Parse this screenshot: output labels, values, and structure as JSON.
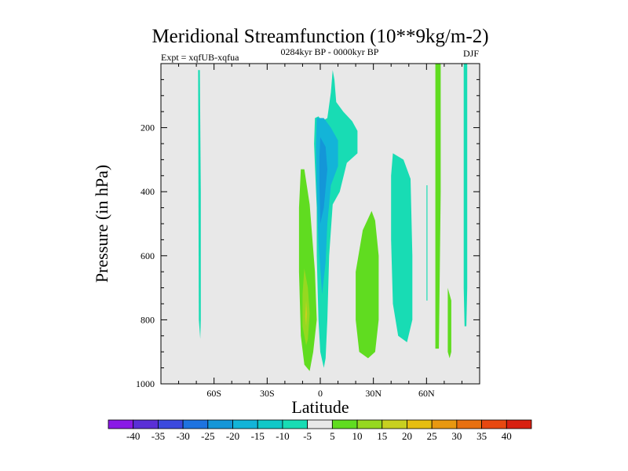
{
  "chart_data": {
    "type": "heatmap",
    "title": "Meridional Streamfunction (10**9kg/m-2)",
    "subtitle_left": "Expt = xqfUB-xqfua",
    "subtitle_center": "0284kyr BP - 0000kyr BP",
    "subtitle_right": "DJF",
    "xlabel": "Latitude",
    "ylabel": "Pressure (in hPa)",
    "xlim": [
      -90,
      90
    ],
    "ylim": [
      1000,
      0
    ],
    "x_ticks": [
      {
        "value": -60,
        "label": "60S"
      },
      {
        "value": -30,
        "label": "30S"
      },
      {
        "value": 0,
        "label": "0"
      },
      {
        "value": 30,
        "label": "30N"
      },
      {
        "value": 60,
        "label": "60N"
      }
    ],
    "y_ticks": [
      {
        "value": 200,
        "label": "200"
      },
      {
        "value": 400,
        "label": "400"
      },
      {
        "value": 600,
        "label": "600"
      },
      {
        "value": 800,
        "label": "800"
      },
      {
        "value": 1000,
        "label": "1000"
      }
    ],
    "background_color": "#e8e8e8",
    "colorbar": {
      "levels": [
        "-40",
        "-35",
        "-30",
        "-25",
        "-20",
        "-15",
        "-10",
        "-5",
        "5",
        "10",
        "15",
        "20",
        "25",
        "30",
        "35",
        "40"
      ],
      "colors": [
        "#8a19e6",
        "#5a2fd6",
        "#3b49de",
        "#1e73e0",
        "#1496d8",
        "#13b4d8",
        "#10c8c8",
        "#18dcb4",
        "#e8e8e8",
        "#60dc20",
        "#96d820",
        "#c8d020",
        "#e6be10",
        "#e89810",
        "#e87010",
        "#e84810",
        "#d82010"
      ]
    },
    "regions": [
      {
        "name": "sh-high-lat-strip",
        "class": "-10 to -5",
        "color": "#18dcb4",
        "points": [
          [
            -69,
            20
          ],
          [
            -68,
            20
          ],
          [
            -67.5,
            400
          ],
          [
            -67.5,
            800
          ],
          [
            -67.8,
            860
          ],
          [
            -68.6,
            800
          ],
          [
            -68.8,
            400
          ]
        ]
      },
      {
        "name": "tropical-negative-cell",
        "class": "-10 to -5",
        "color": "#18dcb4",
        "points": [
          [
            -3,
            170
          ],
          [
            -1,
            165
          ],
          [
            1,
            180
          ],
          [
            4,
            170
          ],
          [
            6,
            90
          ],
          [
            7,
            20
          ],
          [
            8,
            50
          ],
          [
            9,
            120
          ],
          [
            13,
            150
          ],
          [
            18,
            180
          ],
          [
            21,
            210
          ],
          [
            21,
            280
          ],
          [
            15,
            310
          ],
          [
            11,
            400
          ],
          [
            7,
            440
          ],
          [
            5,
            600
          ],
          [
            4,
            800
          ],
          [
            3,
            920
          ],
          [
            2,
            950
          ],
          [
            0,
            900
          ],
          [
            -1,
            800
          ],
          [
            -2,
            600
          ],
          [
            -2,
            450
          ],
          [
            -3,
            320
          ],
          [
            -3.5,
            250
          ]
        ]
      },
      {
        "name": "tropical-core-15",
        "class": "-15 to -10",
        "color": "#13b4d8",
        "points": [
          [
            -2,
            170
          ],
          [
            2,
            170
          ],
          [
            6,
            200
          ],
          [
            10,
            240
          ],
          [
            10,
            320
          ],
          [
            6,
            380
          ],
          [
            4,
            500
          ],
          [
            3,
            620
          ],
          [
            1,
            720
          ],
          [
            -1,
            560
          ],
          [
            -2,
            400
          ],
          [
            -2.5,
            260
          ]
        ]
      },
      {
        "name": "tropical-core-20",
        "class": "-20 to -15",
        "color": "#1496d8",
        "points": [
          [
            0,
            230
          ],
          [
            3,
            260
          ],
          [
            4,
            330
          ],
          [
            2,
            450
          ],
          [
            0,
            500
          ],
          [
            -0.5,
            380
          ],
          [
            -0.5,
            290
          ]
        ]
      },
      {
        "name": "nh-mid-lat-cell",
        "class": "-10 to -5",
        "color": "#18dcb4",
        "points": [
          [
            41,
            280
          ],
          [
            47,
            300
          ],
          [
            51,
            360
          ],
          [
            52,
            600
          ],
          [
            52,
            800
          ],
          [
            49,
            870
          ],
          [
            44,
            850
          ],
          [
            41,
            750
          ],
          [
            40,
            550
          ],
          [
            40,
            350
          ]
        ]
      },
      {
        "name": "nh-thin-strip-63N",
        "class": "-10 to -5",
        "color": "#18dcb4",
        "points": [
          [
            60,
            380
          ],
          [
            60.5,
            380
          ],
          [
            60.5,
            740
          ],
          [
            60,
            740
          ]
        ]
      },
      {
        "name": "nh-polar-strip",
        "class": "-10 to -5",
        "color": "#18dcb4",
        "points": [
          [
            81,
            0
          ],
          [
            83,
            0
          ],
          [
            83,
            360
          ],
          [
            83,
            700
          ],
          [
            82.5,
            820
          ],
          [
            81.5,
            820
          ],
          [
            81,
            700
          ],
          [
            81,
            360
          ]
        ]
      },
      {
        "name": "sh-tropical-positive-cell",
        "class": "5 to 10",
        "color": "#60dc20",
        "points": [
          [
            -11,
            330
          ],
          [
            -9,
            330
          ],
          [
            -6,
            440
          ],
          [
            -3,
            650
          ],
          [
            -2,
            800
          ],
          [
            -4,
            900
          ],
          [
            -6,
            960
          ],
          [
            -9,
            940
          ],
          [
            -11,
            850
          ],
          [
            -12,
            650
          ],
          [
            -12,
            450
          ]
        ]
      },
      {
        "name": "sh-tropical-core-10",
        "class": "10 to 15",
        "color": "#96d820",
        "points": [
          [
            -9,
            640
          ],
          [
            -7,
            700
          ],
          [
            -6,
            780
          ],
          [
            -7,
            860
          ],
          [
            -8,
            880
          ],
          [
            -10,
            820
          ],
          [
            -10,
            720
          ]
        ]
      },
      {
        "name": "sh-tropical-core-15",
        "class": "15 to 20",
        "color": "#c8d020",
        "points": [
          [
            -8,
            740
          ],
          [
            -7.5,
            780
          ],
          [
            -8,
            820
          ],
          [
            -8.5,
            790
          ]
        ]
      },
      {
        "name": "nh-subtropical-positive-cell",
        "class": "5 to 10",
        "color": "#60dc20",
        "points": [
          [
            29,
            460
          ],
          [
            31,
            490
          ],
          [
            33,
            600
          ],
          [
            33,
            800
          ],
          [
            31,
            900
          ],
          [
            27,
            920
          ],
          [
            22,
            900
          ],
          [
            20,
            800
          ],
          [
            20,
            650
          ],
          [
            24,
            520
          ]
        ]
      },
      {
        "name": "nh-positive-strip-66N",
        "class": "5 to 10",
        "color": "#60dc20",
        "points": [
          [
            65,
            0
          ],
          [
            68,
            0
          ],
          [
            68,
            400
          ],
          [
            67,
            890
          ],
          [
            65,
            890
          ],
          [
            65,
            400
          ]
        ]
      },
      {
        "name": "nh-positive-strip-73N",
        "class": "5 to 10",
        "color": "#60dc20",
        "points": [
          [
            72,
            700
          ],
          [
            74,
            740
          ],
          [
            74,
            900
          ],
          [
            73,
            920
          ],
          [
            72,
            900
          ]
        ]
      }
    ]
  }
}
